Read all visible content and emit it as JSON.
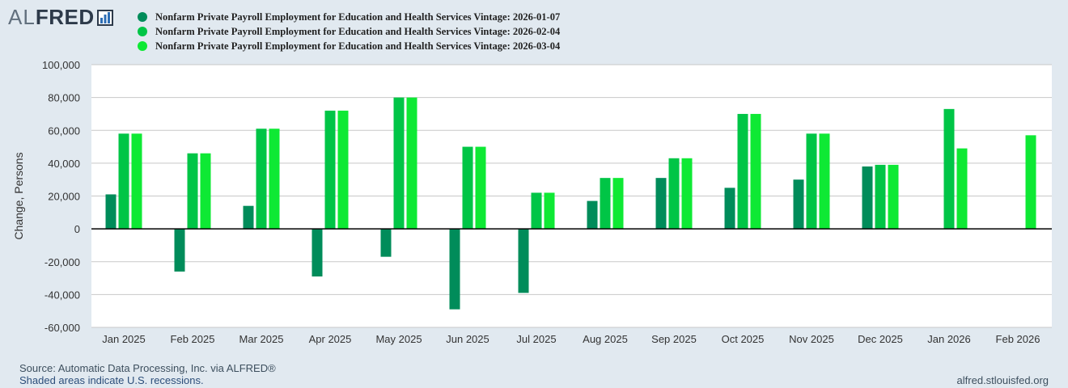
{
  "header": {
    "logo_al": "AL",
    "logo_fred": "FRED"
  },
  "chart_data": {
    "type": "bar",
    "ylabel": "Change, Persons",
    "ylim": [
      -60000,
      100000
    ],
    "yticks": [
      100000,
      80000,
      60000,
      40000,
      20000,
      0,
      -20000,
      -40000,
      -60000
    ],
    "ytick_labels": [
      "100,000",
      "80,000",
      "60,000",
      "40,000",
      "20,000",
      "0",
      "-20,000",
      "-40,000",
      "-60,000"
    ],
    "categories": [
      "Jan 2025",
      "Feb 2025",
      "Mar 2025",
      "Apr 2025",
      "May 2025",
      "Jun 2025",
      "Jul 2025",
      "Aug 2025",
      "Sep 2025",
      "Oct 2025",
      "Nov 2025",
      "Dec 2025",
      "Jan 2026",
      "Feb 2026"
    ],
    "grid": true,
    "legend_position": "top-left",
    "series": [
      {
        "name": "Nonfarm Private Payroll Employment for Education and Health Services Vintage: 2026-01-07",
        "color": "#008c5a",
        "values": [
          21000,
          -26000,
          14000,
          -29000,
          -17000,
          -49000,
          -39000,
          17000,
          31000,
          25000,
          30000,
          38000,
          null,
          null
        ]
      },
      {
        "name": "Nonfarm Private Payroll Employment for Education and Health Services Vintage: 2026-02-04",
        "color": "#00c546",
        "values": [
          58000,
          46000,
          61000,
          72000,
          80000,
          50000,
          22000,
          31000,
          43000,
          70000,
          58000,
          39000,
          73000,
          null
        ]
      },
      {
        "name": "Nonfarm Private Payroll Employment for Education and Health Services Vintage: 2026-03-04",
        "color": "#0ee934",
        "values": [
          58000,
          46000,
          61000,
          72000,
          80000,
          50000,
          22000,
          31000,
          43000,
          70000,
          58000,
          39000,
          49000,
          57000
        ]
      }
    ]
  },
  "footer": {
    "source": "Source: Automatic Data Processing, Inc. via ALFRED®",
    "note": "Shaded areas indicate U.S. recessions.",
    "url": "alfred.stlouisfed.org"
  }
}
